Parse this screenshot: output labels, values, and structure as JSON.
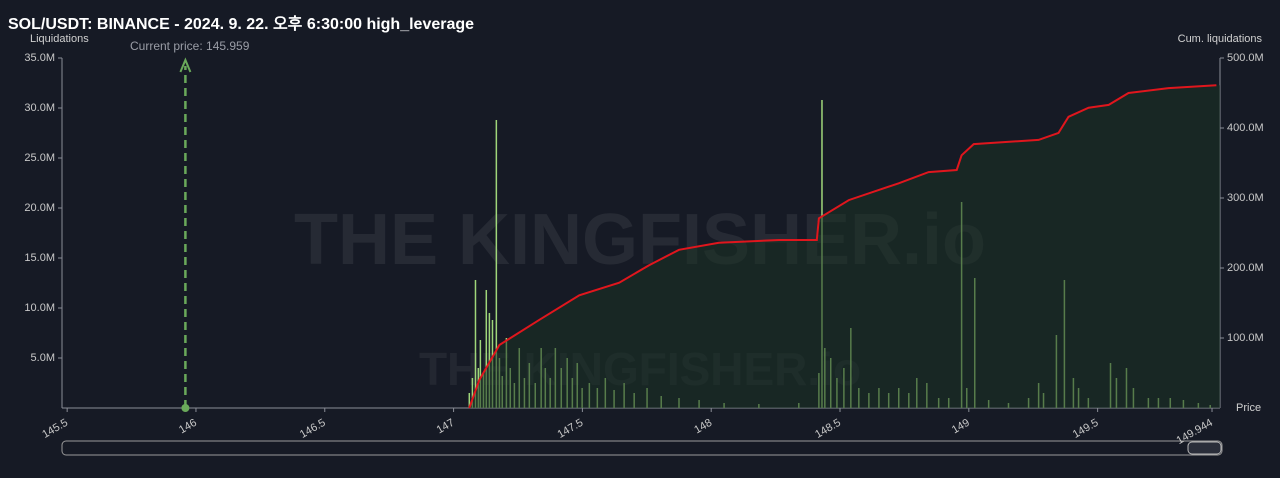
{
  "chart_data": {
    "type": "bar",
    "title": "SOL/USDT: BINANCE - 2024. 9. 22. 오후 6:30:00 high_leverage",
    "ylabel": "Liquidations",
    "y2label": "Cum. liquidations",
    "xlabel": "Price",
    "watermark": "THE KINGFISHER.io",
    "annotation": {
      "text": "Current price: 145.959",
      "x": 145.959,
      "color": "#6aa95a"
    },
    "xlim": [
      145.48,
      149.975
    ],
    "xticks": [
      145.5,
      146,
      146.5,
      147,
      147.5,
      148,
      148.5,
      149,
      149.5,
      149.944
    ],
    "ylim": [
      0,
      35
    ],
    "yticks": [
      {
        "value": 5,
        "label": "5.0M"
      },
      {
        "value": 10,
        "label": "10.0M"
      },
      {
        "value": 15,
        "label": "15.0M"
      },
      {
        "value": 20,
        "label": "20.0M"
      },
      {
        "value": 25,
        "label": "25.0M"
      },
      {
        "value": 30,
        "label": "30.0M"
      },
      {
        "value": 35,
        "label": "35.0M"
      }
    ],
    "y2lim": [
      0,
      500
    ],
    "y2ticks": [
      {
        "value": 100,
        "label": "100.0M"
      },
      {
        "value": 200,
        "label": "200.0M"
      },
      {
        "value": 300,
        "label": "300.0M"
      },
      {
        "value": 400,
        "label": "400.0M"
      },
      {
        "value": 500,
        "label": "500.0M"
      }
    ],
    "series": [
      {
        "color": "#9fd67a",
        "x": [
          147.061,
          147.073,
          147.085,
          147.096,
          147.104,
          147.116,
          147.127,
          147.139,
          147.151,
          147.166,
          147.178,
          147.189,
          147.205,
          147.22,
          147.236,
          147.255,
          147.275,
          147.294,
          147.317,
          147.34,
          147.356,
          147.375,
          147.395,
          147.418,
          147.441,
          147.461,
          147.48,
          147.499,
          147.527,
          147.558,
          147.589,
          147.623,
          147.662,
          147.701,
          147.751,
          147.806,
          147.875,
          147.953,
          148.05,
          148.185,
          148.34,
          148.418,
          148.43,
          148.441,
          148.464,
          148.488,
          148.515,
          148.542,
          148.573,
          148.612,
          148.651,
          148.689,
          148.728,
          148.767,
          148.798,
          148.837,
          148.883,
          148.922,
          148.972,
          148.992,
          149.023,
          149.077,
          149.154,
          149.232,
          149.271,
          149.29,
          149.34,
          149.371,
          149.406,
          149.426,
          149.464,
          149.55,
          149.573,
          149.612,
          149.639,
          149.697,
          149.736,
          149.782,
          149.833,
          149.891,
          149.937
        ],
        "values": [
          1.5,
          3,
          12.8,
          4,
          6.8,
          3.5,
          11.8,
          9.5,
          8.8,
          28.8,
          5,
          3.2,
          7,
          4,
          2.5,
          6,
          3,
          4.5,
          2.5,
          6,
          4,
          3,
          6,
          4,
          5,
          3,
          4.5,
          2,
          2.5,
          2,
          3,
          1.8,
          2.5,
          1.5,
          2,
          1.2,
          1,
          0.8,
          0.5,
          0.4,
          0.5,
          3.5,
          30.8,
          6,
          5,
          3,
          4,
          8,
          2,
          1.5,
          2,
          1.5,
          2,
          1.5,
          3,
          2.5,
          1,
          1,
          20.6,
          2,
          13,
          0.8,
          0.5,
          1,
          2.5,
          1.5,
          7.3,
          12.8,
          3,
          2,
          1,
          4.5,
          3,
          4,
          2,
          1,
          1,
          1,
          0.8,
          0.5,
          0.3
        ]
      },
      {
        "color": "#e0161d",
        "axis": "y2",
        "fill": "#1c3324",
        "x": [
          147.061,
          147.1,
          147.178,
          147.333,
          147.488,
          147.643,
          147.759,
          147.875,
          148.03,
          148.263,
          148.41,
          148.418,
          148.534,
          148.728,
          148.844,
          148.953,
          148.972,
          149.019,
          149.271,
          149.348,
          149.387,
          149.465,
          149.543,
          149.62,
          149.775,
          149.961
        ],
        "values": [
          0,
          40,
          90,
          126,
          161,
          179,
          204,
          226,
          236,
          240,
          240,
          271,
          297,
          321,
          337,
          340,
          361,
          377,
          383,
          393,
          416,
          429,
          433,
          450,
          457,
          461
        ]
      }
    ]
  }
}
